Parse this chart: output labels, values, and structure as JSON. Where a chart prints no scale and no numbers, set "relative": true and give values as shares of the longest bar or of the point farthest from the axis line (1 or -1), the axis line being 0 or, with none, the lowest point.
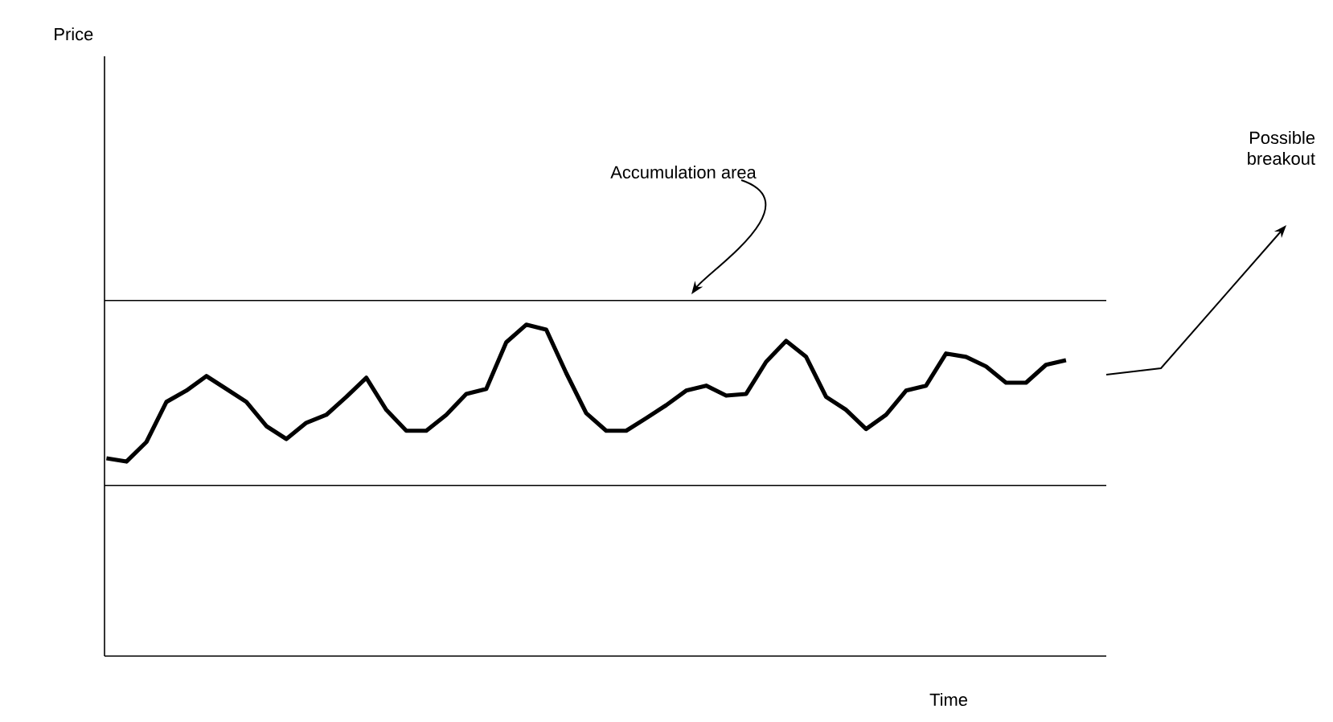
{
  "chart_data": {
    "type": "line",
    "relative": true,
    "xlabel": "Time",
    "categories": [
      null,
      null,
      null,
      null,
      null,
      null,
      null,
      null,
      null,
      null,
      null,
      null,
      null,
      null,
      null,
      null,
      null,
      null,
      null,
      null,
      null,
      null,
      null,
      null,
      null,
      null,
      null,
      null,
      null,
      null,
      null,
      null,
      null,
      null,
      null,
      null,
      null,
      null,
      null,
      null,
      null,
      null,
      null,
      null,
      null,
      null,
      null,
      null,
      null
    ],
    "annotations": [
      "Accumulation area",
      "Possible breakout",
      "Price"
    ],
    "ref_lines": [
      {
        "axis": "y",
        "value": 1.073,
        "color": "#000000"
      },
      {
        "axis": "y",
        "value": 0.515,
        "color": "#000000"
      }
    ],
    "marker": "none",
    "line_style": "solid",
    "series": [
      {
        "color": "#000000",
        "values": [
          0.597,
          0.587,
          0.646,
          0.767,
          0.801,
          0.845,
          0.806,
          0.767,
          0.694,
          0.655,
          0.704,
          0.728,
          0.782,
          0.84,
          0.743,
          0.68,
          0.68,
          0.728,
          0.791,
          0.806,
          0.947,
          1.0,
          0.985,
          0.854,
          0.733,
          0.68,
          0.68,
          0.718,
          0.757,
          0.801,
          0.816,
          0.786,
          0.791,
          0.888,
          0.951,
          0.903,
          0.782,
          0.743,
          0.685,
          0.728,
          0.801,
          0.816,
          0.913,
          0.903,
          0.874,
          0.825,
          0.825,
          0.879,
          0.893
        ]
      }
    ]
  }
}
